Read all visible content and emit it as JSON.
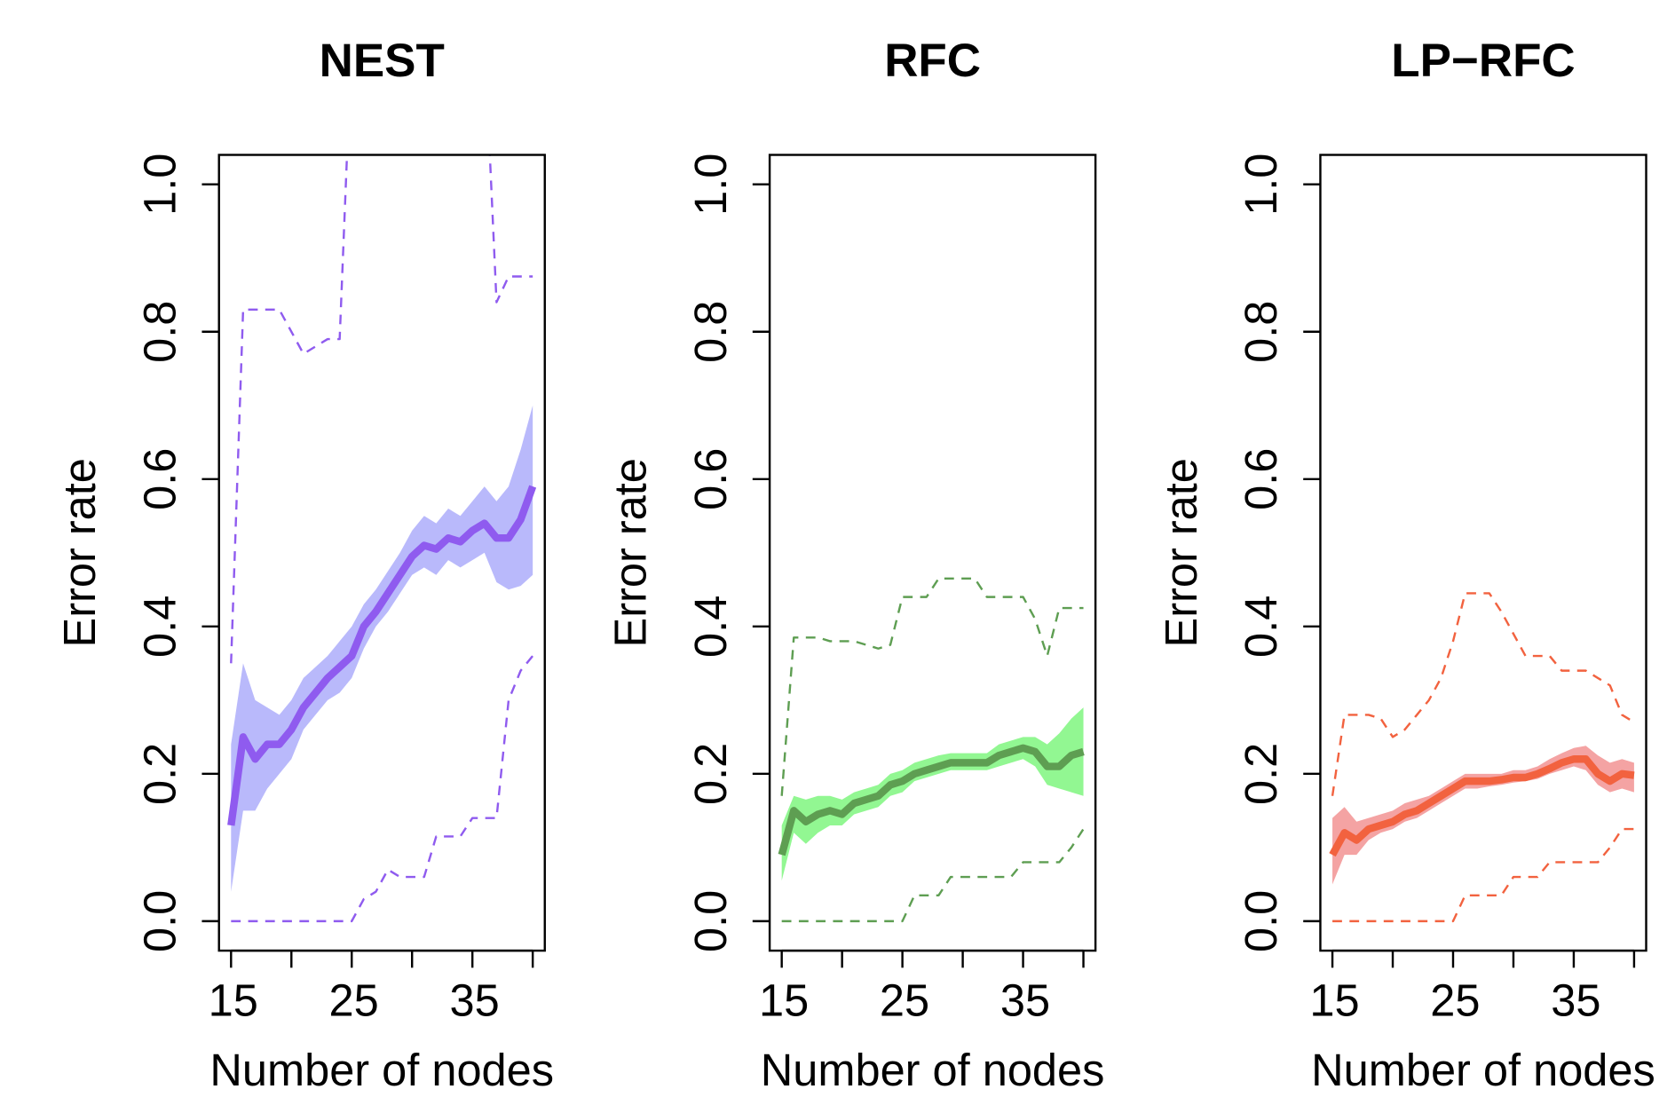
{
  "chart_data": [
    {
      "type": "line",
      "title": "NEST",
      "xlabel": "Number of nodes",
      "ylabel": "Error rate",
      "x": [
        15,
        16,
        17,
        18,
        19,
        20,
        21,
        22,
        23,
        24,
        25,
        26,
        27,
        28,
        29,
        30,
        31,
        32,
        33,
        34,
        35,
        36,
        37,
        38,
        39,
        40
      ],
      "xlim": [
        14,
        41
      ],
      "xticks": [
        15,
        25,
        35
      ],
      "xticks_minor": [
        20,
        30,
        40
      ],
      "ylim": [
        -0.04,
        1.04
      ],
      "yticks": [
        {
          "value": 0,
          "label": "0.0"
        },
        0.2,
        0.4,
        0.6,
        0.8,
        {
          "value": 1,
          "label": "1.0"
        }
      ],
      "mean": {
        "color": "#8f5bef",
        "values": [
          0.13,
          0.25,
          0.22,
          0.24,
          0.24,
          0.26,
          0.29,
          0.31,
          0.33,
          0.345,
          0.36,
          0.4,
          0.42,
          0.445,
          0.47,
          0.495,
          0.51,
          0.505,
          0.52,
          0.515,
          0.53,
          0.54,
          0.52,
          0.52,
          0.545,
          0.59
        ]
      },
      "band": {
        "color": "#b9b9fb",
        "lower": [
          0.04,
          0.15,
          0.15,
          0.18,
          0.2,
          0.22,
          0.26,
          0.28,
          0.3,
          0.31,
          0.33,
          0.37,
          0.4,
          0.42,
          0.445,
          0.47,
          0.48,
          0.47,
          0.49,
          0.48,
          0.49,
          0.5,
          0.46,
          0.45,
          0.455,
          0.47
        ],
        "upper": [
          0.24,
          0.35,
          0.3,
          0.29,
          0.28,
          0.3,
          0.33,
          0.345,
          0.36,
          0.38,
          0.4,
          0.43,
          0.45,
          0.475,
          0.5,
          0.53,
          0.55,
          0.54,
          0.56,
          0.55,
          0.57,
          0.59,
          0.57,
          0.59,
          0.64,
          0.7
        ]
      },
      "bounds": {
        "color": "#8f5bef",
        "style": "dashed",
        "lower": [
          0,
          0,
          0,
          0,
          0,
          0,
          0,
          0,
          0,
          0,
          0,
          0.03,
          0.04,
          0.07,
          0.06,
          0.06,
          0.06,
          0.115,
          0.115,
          0.115,
          0.14,
          0.14,
          0.14,
          0.3,
          0.34,
          0.36
        ],
        "upper": [
          0.35,
          0.83,
          0.83,
          0.83,
          0.83,
          0.8,
          0.77,
          0.78,
          0.79,
          0.79,
          1.2,
          1.2,
          1.2,
          1.2,
          1.2,
          1.2,
          1.2,
          1.2,
          1.2,
          1.2,
          1.2,
          1.2,
          0.84,
          0.875,
          0.875,
          0.875
        ]
      }
    },
    {
      "type": "line",
      "title": "RFC",
      "xlabel": "Number of nodes",
      "ylabel": "Error rate",
      "x": [
        15,
        16,
        17,
        18,
        19,
        20,
        21,
        22,
        23,
        24,
        25,
        26,
        27,
        28,
        29,
        30,
        31,
        32,
        33,
        34,
        35,
        36,
        37,
        38,
        39,
        40
      ],
      "xlim": [
        14,
        41
      ],
      "xticks": [
        15,
        25,
        35
      ],
      "xticks_minor": [
        20,
        30,
        40
      ],
      "ylim": [
        -0.04,
        1.04
      ],
      "yticks": [
        {
          "value": 0,
          "label": "0.0"
        },
        0.2,
        0.4,
        0.6,
        0.8,
        {
          "value": 1,
          "label": "1.0"
        }
      ],
      "mean": {
        "color": "#5e9e52",
        "values": [
          0.09,
          0.15,
          0.135,
          0.145,
          0.15,
          0.145,
          0.16,
          0.165,
          0.17,
          0.185,
          0.19,
          0.2,
          0.205,
          0.21,
          0.215,
          0.215,
          0.215,
          0.215,
          0.225,
          0.23,
          0.235,
          0.23,
          0.21,
          0.21,
          0.225,
          0.23
        ]
      },
      "band": {
        "color": "#92f792",
        "lower": [
          0.055,
          0.12,
          0.105,
          0.12,
          0.13,
          0.13,
          0.145,
          0.15,
          0.155,
          0.17,
          0.175,
          0.19,
          0.195,
          0.2,
          0.205,
          0.205,
          0.205,
          0.205,
          0.21,
          0.215,
          0.22,
          0.21,
          0.185,
          0.18,
          0.175,
          0.17
        ],
        "upper": [
          0.13,
          0.17,
          0.165,
          0.17,
          0.17,
          0.165,
          0.175,
          0.18,
          0.185,
          0.2,
          0.205,
          0.215,
          0.22,
          0.225,
          0.228,
          0.228,
          0.228,
          0.228,
          0.24,
          0.245,
          0.25,
          0.25,
          0.24,
          0.255,
          0.275,
          0.29
        ]
      },
      "bounds": {
        "color": "#5e9e52",
        "style": "dashed",
        "lower": [
          0,
          0,
          0,
          0,
          0,
          0,
          0,
          0,
          0,
          0,
          0,
          0.035,
          0.035,
          0.035,
          0.06,
          0.06,
          0.06,
          0.06,
          0.06,
          0.06,
          0.08,
          0.08,
          0.08,
          0.08,
          0.1,
          0.125
        ],
        "upper": [
          0.17,
          0.385,
          0.385,
          0.385,
          0.38,
          0.38,
          0.38,
          0.375,
          0.37,
          0.375,
          0.44,
          0.44,
          0.44,
          0.465,
          0.465,
          0.465,
          0.465,
          0.44,
          0.44,
          0.44,
          0.44,
          0.41,
          0.36,
          0.425,
          0.425,
          0.425
        ]
      }
    },
    {
      "type": "line",
      "title": "LP−RFC",
      "xlabel": "Number of nodes",
      "ylabel": "Error rate",
      "x": [
        15,
        16,
        17,
        18,
        19,
        20,
        21,
        22,
        23,
        24,
        25,
        26,
        27,
        28,
        29,
        30,
        31,
        32,
        33,
        34,
        35,
        36,
        37,
        38,
        39,
        40
      ],
      "xlim": [
        14,
        41
      ],
      "xticks": [
        15,
        25,
        35
      ],
      "xticks_minor": [
        20,
        30,
        40
      ],
      "ylim": [
        -0.04,
        1.04
      ],
      "yticks": [
        {
          "value": 0,
          "label": "0.0"
        },
        0.2,
        0.4,
        0.6,
        0.8,
        {
          "value": 1,
          "label": "1.0"
        }
      ],
      "mean": {
        "color": "#f2623f",
        "values": [
          0.09,
          0.12,
          0.11,
          0.125,
          0.13,
          0.135,
          0.145,
          0.15,
          0.16,
          0.17,
          0.18,
          0.19,
          0.19,
          0.19,
          0.192,
          0.195,
          0.195,
          0.2,
          0.207,
          0.215,
          0.22,
          0.22,
          0.2,
          0.19,
          0.2,
          0.198
        ]
      },
      "band": {
        "color": "#f4a3a3",
        "lower": [
          0.05,
          0.09,
          0.09,
          0.11,
          0.12,
          0.125,
          0.135,
          0.14,
          0.15,
          0.16,
          0.17,
          0.18,
          0.18,
          0.183,
          0.185,
          0.188,
          0.19,
          0.193,
          0.2,
          0.205,
          0.21,
          0.205,
          0.185,
          0.175,
          0.18,
          0.175
        ],
        "upper": [
          0.14,
          0.155,
          0.135,
          0.14,
          0.145,
          0.15,
          0.16,
          0.165,
          0.17,
          0.18,
          0.19,
          0.2,
          0.2,
          0.2,
          0.2,
          0.205,
          0.205,
          0.21,
          0.22,
          0.228,
          0.235,
          0.238,
          0.225,
          0.215,
          0.22,
          0.215
        ]
      },
      "bounds": {
        "color": "#f2623f",
        "style": "dashed",
        "lower": [
          0,
          0,
          0,
          0,
          0,
          0,
          0,
          0,
          0,
          0,
          0,
          0.035,
          0.035,
          0.035,
          0.035,
          0.06,
          0.06,
          0.06,
          0.08,
          0.08,
          0.08,
          0.08,
          0.08,
          0.1,
          0.125,
          0.125
        ],
        "upper": [
          0.17,
          0.28,
          0.28,
          0.28,
          0.275,
          0.25,
          0.26,
          0.28,
          0.3,
          0.33,
          0.38,
          0.445,
          0.445,
          0.445,
          0.42,
          0.39,
          0.36,
          0.36,
          0.36,
          0.34,
          0.34,
          0.34,
          0.33,
          0.32,
          0.28,
          0.27
        ]
      }
    }
  ]
}
